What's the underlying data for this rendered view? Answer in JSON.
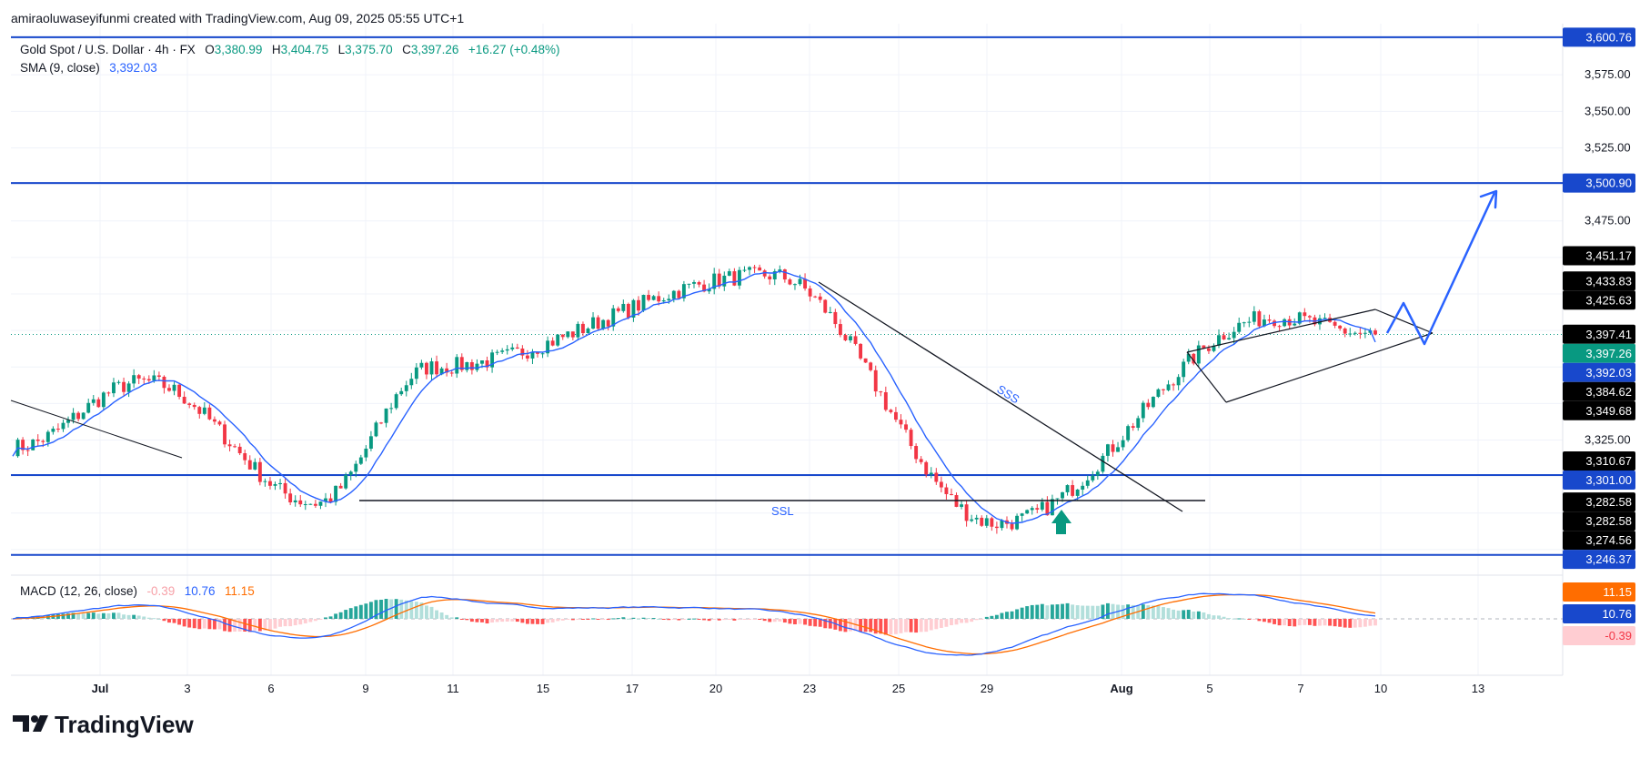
{
  "credit": "amiraoluwaseyifunmi created with TradingView.com, Aug 09, 2025 05:55 UTC+1",
  "legend": {
    "symbol": "Gold Spot / U.S. Dollar · 4h · FX",
    "o_label": "O",
    "o": "3,380.99",
    "h_label": "H",
    "h": "3,404.75",
    "l_label": "L",
    "l": "3,375.70",
    "c_label": "C",
    "c": "3,397.26",
    "change": "+16.27 (+0.48%)",
    "sma_label": "SMA (9, close)",
    "sma_value": "3,392.03",
    "macd_label": "MACD (12, 26, close)",
    "macd_hist": "-0.39",
    "macd_line": "10.76",
    "macd_signal": "11.15"
  },
  "colors": {
    "up": "#089981",
    "down": "#f23645",
    "sma": "#2962ff",
    "hline": "#1848cc",
    "macd": "#2962ff",
    "signal": "#ff6d00",
    "black_tag": "#000000",
    "teal_tag": "#089981"
  },
  "branding": {
    "logo_text": "TradingView"
  },
  "chart_data": {
    "type": "candlestick",
    "title": "Gold Spot / U.S. Dollar · 4h · FX",
    "ylim": [
      3235,
      3610
    ],
    "y_ticks": [
      "3,575.00",
      "3,550.00",
      "3,525.00",
      "3,475.00",
      "3,325.00"
    ],
    "x_ticks": [
      "Jul",
      "3",
      "6",
      "9",
      "11",
      "15",
      "17",
      "20",
      "23",
      "25",
      "29",
      "Aug",
      "5",
      "7",
      "10",
      "13"
    ],
    "series": [
      {
        "name": "SMA (9, close)",
        "last": 3392.03
      },
      {
        "name": "Price",
        "last": 3397.26
      }
    ],
    "key_price_points": [
      {
        "label": "start",
        "value": 3320
      },
      {
        "label": "early-Jul high",
        "value": 3365
      },
      {
        "label": "Jul 9 low",
        "value": 3282
      },
      {
        "label": "Jul 14 high",
        "value": 3375
      },
      {
        "label": "Jul 23 high",
        "value": 3438
      },
      {
        "label": "Jul 31 low",
        "value": 3268
      },
      {
        "label": "Aug 8 high",
        "value": 3409
      },
      {
        "label": "last close",
        "value": 3397.26
      }
    ],
    "horizontal_levels": [
      3600.76,
      3500.9,
      3301.0,
      3246.37
    ],
    "price_tags": [
      {
        "value": "3,600.76",
        "style": "blue"
      },
      {
        "value": "3,500.90",
        "style": "blue"
      },
      {
        "value": "3,451.17",
        "style": "black"
      },
      {
        "value": "3,433.83",
        "style": "black"
      },
      {
        "value": "3,425.63",
        "style": "black"
      },
      {
        "value": "3,397.41",
        "style": "black"
      },
      {
        "value": "3,397.26",
        "style": "teal"
      },
      {
        "value": "3,392.03",
        "style": "blue"
      },
      {
        "value": "3,384.62",
        "style": "black"
      },
      {
        "value": "3,349.68",
        "style": "black"
      },
      {
        "value": "3,310.67",
        "style": "black"
      },
      {
        "value": "3,301.00",
        "style": "blue"
      },
      {
        "value": "3,282.58",
        "style": "black"
      },
      {
        "value": "3,282.58",
        "style": "black"
      },
      {
        "value": "3,274.56",
        "style": "black"
      },
      {
        "value": "3,246.37",
        "style": "blue"
      }
    ],
    "macd_tags": [
      {
        "value": "11.15",
        "style": "orange"
      },
      {
        "value": "10.76",
        "style": "blue"
      },
      {
        "value": "-0.39",
        "style": "pink"
      }
    ],
    "annotations": [
      {
        "text": "SSS"
      },
      {
        "text": "SSL"
      }
    ]
  }
}
